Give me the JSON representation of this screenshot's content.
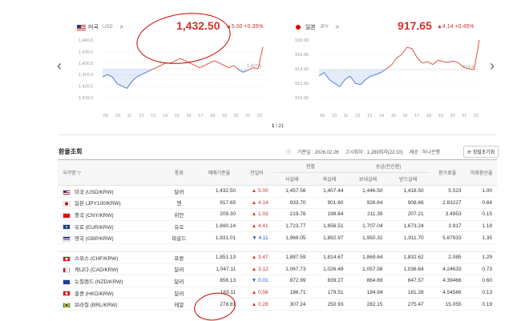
{
  "nav": {
    "prev_icon": "‹",
    "next_icon": "›"
  },
  "usd_panel": {
    "country": "미국",
    "code": "USD",
    "value": "1,432.50",
    "change": "▲5.00",
    "pct": "+0.35%",
    "yticks": [
      "1,440.0",
      "1,435.0",
      "1,430.0",
      "1,425.0",
      "1,420.0",
      "1,415.0"
    ],
    "xticks": [
      "09",
      "10",
      "11",
      "12",
      "13",
      "14",
      "15",
      "16",
      "17",
      "18",
      "19",
      "20",
      "21",
      "22"
    ],
    "last_label": "1,427.5"
  },
  "jpy_panel": {
    "country": "일본",
    "code": "JPY",
    "value": "917.65",
    "change": "▲4.14",
    "pct": "+0.45%",
    "yticks": [
      "918.00",
      "916.00",
      "914.00",
      "912.00",
      "910.00"
    ],
    "xticks": [
      "09",
      "10",
      "11",
      "12",
      "13",
      "14",
      "15",
      "16",
      "17",
      "18",
      "19",
      "20",
      "21",
      "22"
    ],
    "last_label": "913.9"
  },
  "pager": {
    "current": "1",
    "total": "/ 21"
  },
  "rates": {
    "title": "환율조회",
    "base_date": "기준일 : 2026.02.26",
    "notice": "고시회차 : 1,289회차(22:10)",
    "provider": "제공 : 하나은행",
    "refresh": "정렬초기화"
  },
  "headers": {
    "country": "국가명 ▽",
    "unit": "통화",
    "base": "매매기준율",
    "prev": "전일비",
    "cash": "현찰",
    "transfer": "송금(전신환)",
    "exchange": "환가료율",
    "usd_rate": "미화환산율",
    "cash_buy": "사실때",
    "cash_sell": "파실때",
    "send": "보내실때",
    "receive": "받으실때"
  },
  "table_rows": [
    {
      "flag": "us",
      "name": "미국 (USD/KRW)",
      "unit": "달러",
      "base": "1,432.50",
      "dir": "up",
      "prev": "▲ 5.00",
      "cb": "1,457.56",
      "cs": "1,407.44",
      "sd": "1,446.50",
      "rc": "1,418.50",
      "ex": "5.523",
      "ur": "1.00"
    },
    {
      "flag": "jp",
      "name": "일본 (JPY100/KRW)",
      "unit": "엔",
      "base": "917.65",
      "dir": "up",
      "prev": "▲ 4.14",
      "cb": "933.70",
      "cs": "901.60",
      "sd": "926.64",
      "rc": "908.66",
      "ex": "2.83227",
      "ur": "0.64"
    },
    {
      "flag": "cn",
      "name": "중국 (CNY/KRW)",
      "unit": "위안",
      "base": "209.30",
      "dir": "up",
      "prev": "▲ 1.03",
      "cb": "219.76",
      "cs": "198.84",
      "sd": "211.39",
      "rc": "207.21",
      "ex": "3.4953",
      "ur": "0.15"
    },
    {
      "flag": "eu",
      "name": "유로 (EUR/KRW)",
      "unit": "유로",
      "base": "1,690.14",
      "dir": "up",
      "prev": "▲ 4.41",
      "cb": "1,723.77",
      "cs": "1,656.51",
      "sd": "1,707.04",
      "rc": "1,673.24",
      "ex": "3.917",
      "ur": "1.18"
    },
    {
      "flag": "gb",
      "name": "영국 (GBP/KRW)",
      "unit": "파운드",
      "base": "1,931.01",
      "dir": "down",
      "prev": "▼ 4.11",
      "cb": "1,969.05",
      "cs": "1,892.97",
      "sd": "1,950.32",
      "rc": "1,911.70",
      "ex": "5.87933",
      "ur": "1.35"
    },
    {
      "flag": "ch",
      "name": "스위스 (CHF/KRW)",
      "unit": "프랑",
      "base": "1,851.13",
      "dir": "up",
      "prev": "▲ 3.47",
      "cb": "1,887.59",
      "cs": "1,814.67",
      "sd": "1,869.64",
      "rc": "1,832.62",
      "ex": "2.085",
      "ur": "1.29"
    },
    {
      "flag": "ca",
      "name": "캐나다 (CAD/KRW)",
      "unit": "달러",
      "base": "1,047.11",
      "dir": "up",
      "prev": "▲ 3.12",
      "cb": "1,067.73",
      "cs": "1,026.49",
      "sd": "1,057.58",
      "rc": "1,036.64",
      "ex": "4.24633",
      "ur": "0.73"
    },
    {
      "flag": "nz",
      "name": "뉴질랜드 (NZD/KRW)",
      "unit": "달러",
      "base": "856.13",
      "dir": "down",
      "prev": "▼ 0.01",
      "cb": "872.99",
      "cs": "839.27",
      "sd": "864.69",
      "rc": "847.57",
      "ex": "4.39466",
      "ur": "0.60"
    },
    {
      "flag": "hk",
      "name": "홍콩 (HKD/KRW)",
      "unit": "달러",
      "base": "183.11",
      "dir": "up",
      "prev": "▲ 0.56",
      "cb": "186.71",
      "cs": "179.51",
      "sd": "184.94",
      "rc": "181.28",
      "ex": "4.54566",
      "ur": "0.13"
    },
    {
      "flag": "br",
      "name": "브라질 (BRL/KRW)",
      "unit": "레알",
      "base": "278.81",
      "dir": "up",
      "prev": "▲ 0.28",
      "cb": "307.24",
      "cs": "250.93",
      "sd": "282.15",
      "rc": "275.47",
      "ex": "15.055",
      "ur": "0.19"
    }
  ],
  "chart_data": [
    {
      "type": "line",
      "series": [
        {
          "values": [
            1424,
            1425,
            1424,
            1421,
            1420,
            1419,
            1422,
            1424,
            1425,
            1426,
            1427,
            1428,
            1429,
            1430,
            1430,
            1431,
            1432,
            1431,
            1430,
            1429,
            1428,
            1429,
            1430,
            1431,
            1430,
            1429,
            1428,
            1429,
            1427,
            1426,
            1427,
            1428,
            1427.5,
            1437
          ]
        }
      ],
      "ylim": [
        1415,
        1440
      ]
    },
    {
      "type": "line",
      "series": [
        {
          "values": [
            913,
            913.5,
            912.5,
            912,
            911.5,
            912.5,
            913,
            912,
            911.8,
            912.5,
            913,
            913.2,
            913.5,
            914,
            914.5,
            915.5,
            916,
            917,
            916.8,
            915.5,
            914.8,
            915,
            914.6,
            915.2,
            915,
            914.9,
            915.1,
            914.8,
            914.2,
            914,
            913.9,
            918
          ]
        }
      ],
      "ylim": [
        910,
        918
      ]
    }
  ]
}
